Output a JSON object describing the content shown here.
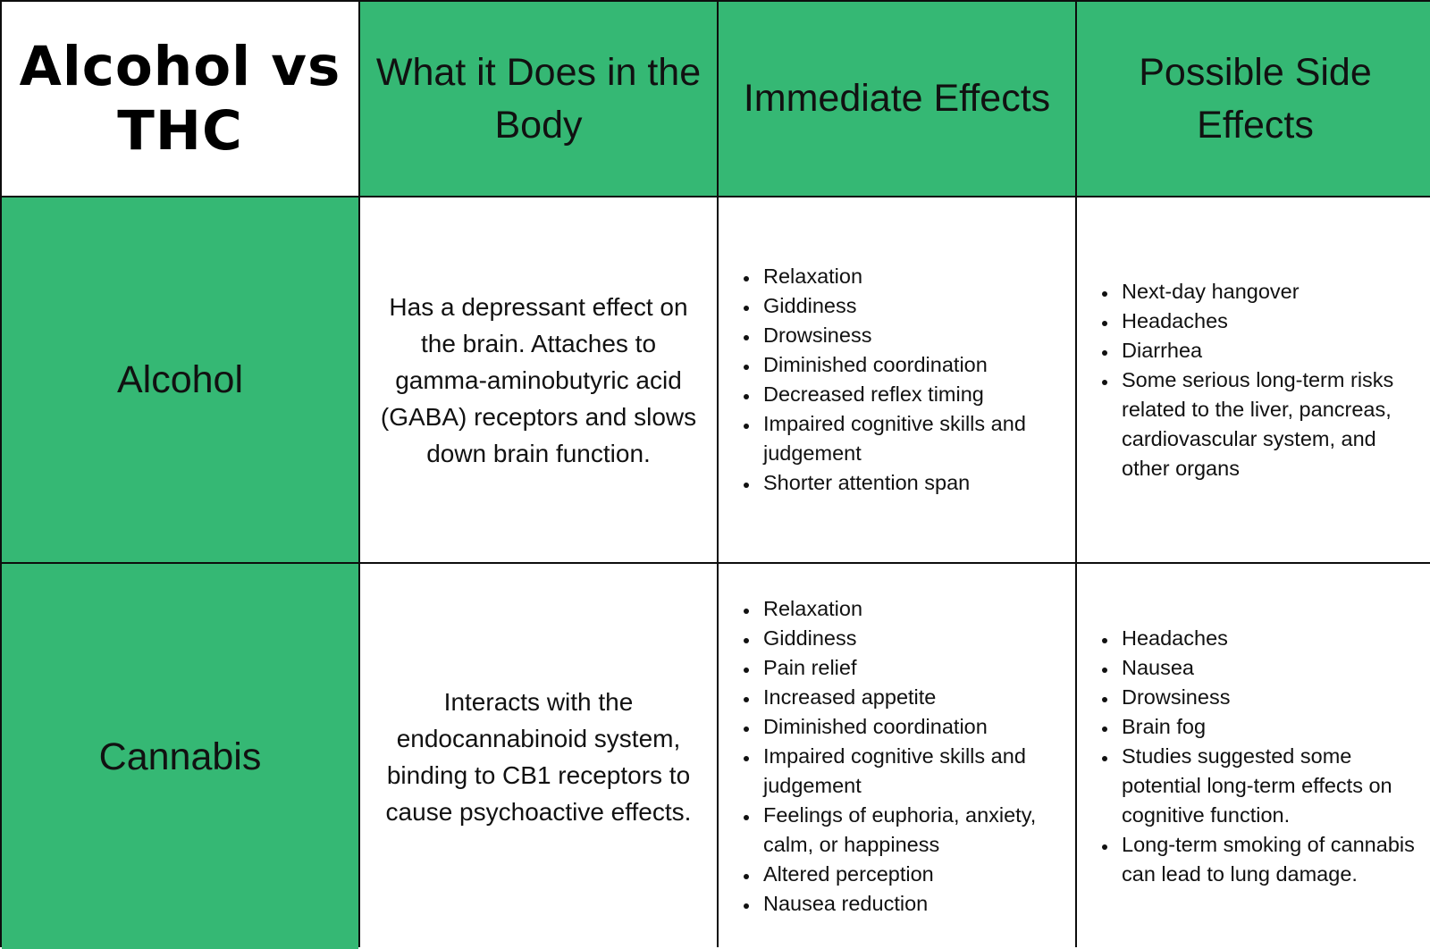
{
  "title": "Alcohol vs THC",
  "headers": [
    "What it Does in the Body",
    "Immediate Effects",
    "Possible Side Effects"
  ],
  "rows": [
    {
      "label": "Alcohol",
      "body_action": "Has a depressant effect on the brain. Attaches to gamma-aminobutyric acid (GABA) receptors and slows down brain function.",
      "immediate_effects": [
        "Relaxation",
        "Giddiness",
        "Drowsiness",
        "Diminished coordination",
        "Decreased reflex timing",
        "Impaired cognitive skills and judgement",
        "Shorter attention span"
      ],
      "side_effects": [
        "Next-day hangover",
        "Headaches",
        "Diarrhea",
        "Some serious long-term risks related to the liver, pancreas, cardiovascular system, and other organs"
      ]
    },
    {
      "label": "Cannabis",
      "body_action": "Interacts with the endocannabinoid system, binding to CB1 receptors to cause psychoactive effects.",
      "immediate_effects": [
        "Relaxation",
        "Giddiness",
        "Pain relief",
        "Increased appetite",
        "Diminished coordination",
        "Impaired cognitive skills and judgement",
        "Feelings of euphoria, anxiety, calm, or happiness",
        "Altered perception",
        "Nausea reduction"
      ],
      "side_effects": [
        "Headaches",
        "Nausea",
        "Drowsiness",
        "Brain fog",
        "Studies suggested some potential long-term effects on cognitive function.",
        "Long-term smoking of cannabis can lead to lung damage."
      ]
    }
  ],
  "colors": {
    "header_green": "#35b874",
    "border": "#0d0d0d",
    "cell_white": "#ffffff"
  }
}
